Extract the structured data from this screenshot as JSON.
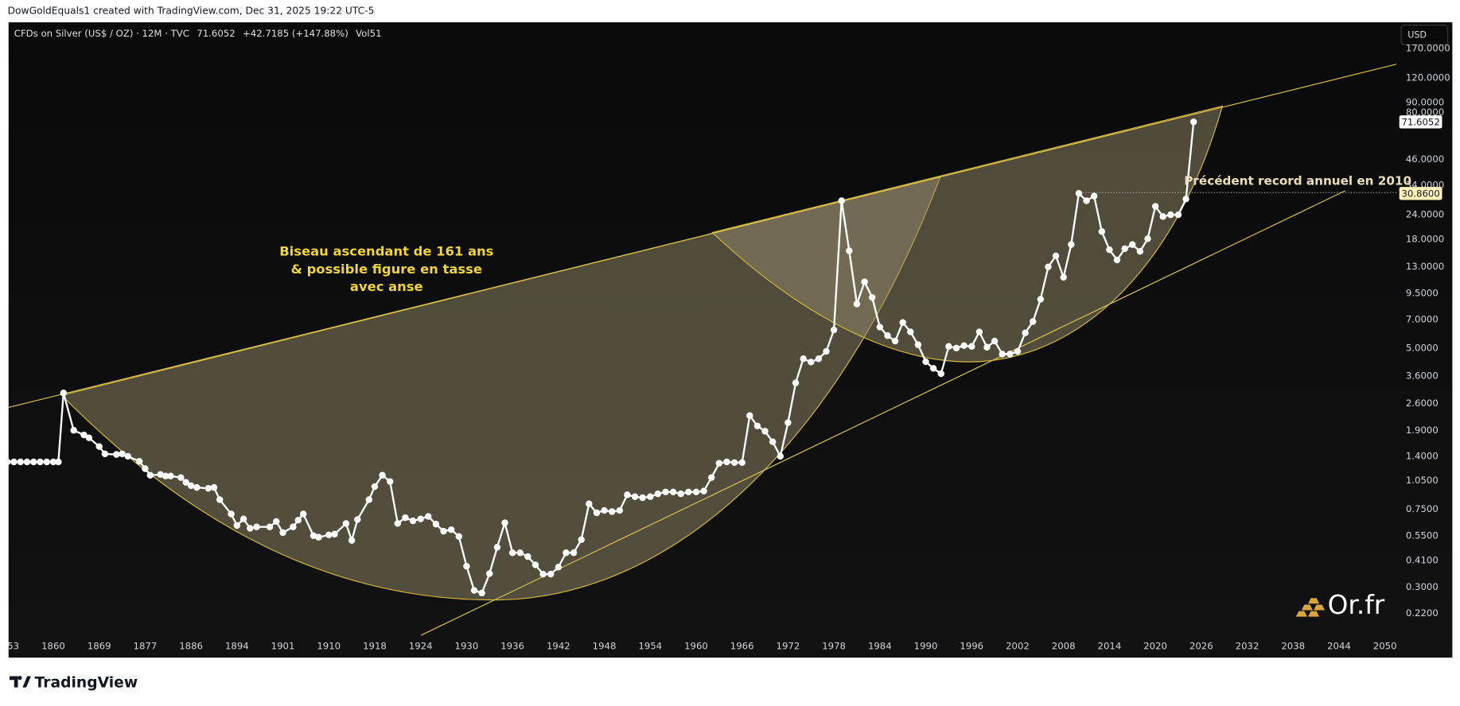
{
  "header": {
    "watermark": "DowGoldEquals1 created with TradingView.com, Dec 31, 2025 19:22 UTC-5",
    "last": "71.6052",
    "change": "+42.7185 (+147.88%)",
    "volume": "Vol51",
    "currency": "USD"
  },
  "chart_data": {
    "type": "line",
    "log_scale": true,
    "grid": false,
    "series": [
      {
        "name": "CFDs on Silver (US$ / OZ) · 12M · TVC",
        "color": "#ffffff",
        "values": [
          1.31,
          1.31,
          1.31,
          1.31,
          1.31,
          1.31,
          1.31,
          1.31,
          1.31,
          2.95,
          1.9,
          1.8,
          1.74,
          1.57,
          1.44,
          1.43,
          1.44,
          1.4,
          1.32,
          1.21,
          1.12,
          1.13,
          1.11,
          1.11,
          1.09,
          1.03,
          0.99,
          0.97,
          0.96,
          0.97,
          0.84,
          0.71,
          0.62,
          0.67,
          0.6,
          0.61,
          0.61,
          0.65,
          0.57,
          0.61,
          0.66,
          0.71,
          0.55,
          0.54,
          0.555,
          0.56,
          0.635,
          0.52,
          0.665,
          0.84,
          0.98,
          1.12,
          1.04,
          0.635,
          0.68,
          0.655,
          0.67,
          0.69,
          0.63,
          0.58,
          0.59,
          0.545,
          0.384,
          0.289,
          0.28,
          0.352,
          0.48,
          0.64,
          0.45,
          0.45,
          0.43,
          0.39,
          0.35,
          0.35,
          0.38,
          0.45,
          0.45,
          0.525,
          0.8,
          0.72,
          0.74,
          0.73,
          0.74,
          0.89,
          0.87,
          0.86,
          0.87,
          0.9,
          0.92,
          0.92,
          0.9,
          0.92,
          0.92,
          0.93,
          1.09,
          1.29,
          1.31,
          1.3,
          1.3,
          2.26,
          2,
          1.88,
          1.66,
          1.4,
          2.08,
          3.32,
          4.41,
          4.24,
          4.41,
          4.81,
          6.19,
          28.3,
          15.7,
          8.4,
          10.9,
          9.07,
          6.4,
          5.79,
          5.43,
          6.76,
          6.05,
          5.2,
          4.26,
          3.94,
          3.7,
          5.1,
          5,
          5.15,
          5.1,
          6.05,
          5.05,
          5.43,
          4.66,
          4.66,
          4.81,
          5.98,
          6.83,
          8.88,
          13,
          14.8,
          11.5,
          16.9,
          30.86,
          28.3,
          29.9,
          19.7,
          15.9,
          14.1,
          16.1,
          16.9,
          15.6,
          18.1,
          26.5,
          23.5,
          24,
          24,
          28.89,
          71.6052
        ]
      }
    ],
    "x": [
      1853,
      1854,
      1855,
      1856,
      1857,
      1858,
      1859,
      1860,
      1861,
      1862,
      1864,
      1866,
      1867,
      1869,
      1870,
      1872,
      1873,
      1874,
      1876,
      1877,
      1878,
      1880,
      1881,
      1882,
      1884,
      1885,
      1886,
      1887,
      1889,
      1890,
      1891,
      1893,
      1894,
      1895,
      1896,
      1897,
      1899,
      1900,
      1901,
      1903,
      1904,
      1905,
      1907,
      1908,
      1910,
      1911,
      1913,
      1914,
      1915,
      1917,
      1918,
      1919,
      1920,
      1921,
      1922,
      1923,
      1924,
      1925,
      1926,
      1927,
      1928,
      1929,
      1930,
      1931,
      1932,
      1933,
      1934,
      1935,
      1936,
      1937,
      1938,
      1939,
      1940,
      1941,
      1942,
      1943,
      1944,
      1945,
      1946,
      1947,
      1948,
      1949,
      1950,
      1951,
      1952,
      1953,
      1954,
      1955,
      1956,
      1957,
      1958,
      1959,
      1960,
      1961,
      1962,
      1963,
      1964,
      1965,
      1966,
      1967,
      1968,
      1969,
      1970,
      1971,
      1972,
      1973,
      1974,
      1975,
      1976,
      1977,
      1978,
      1979,
      1980,
      1981,
      1982,
      1983,
      1984,
      1985,
      1986,
      1987,
      1988,
      1989,
      1990,
      1991,
      1992,
      1993,
      1994,
      1995,
      1996,
      1997,
      1998,
      1999,
      2000,
      2001,
      2002,
      2003,
      2004,
      2005,
      2006,
      2007,
      2008,
      2009,
      2010,
      2011,
      2012,
      2013,
      2014,
      2015,
      2016,
      2017,
      2018,
      2019,
      2020,
      2021,
      2022,
      2023,
      2024,
      2025
    ],
    "xticks": [
      {
        "value": 1853,
        "label": "53"
      },
      1860,
      1869,
      1877,
      1886,
      1894,
      1901,
      1910,
      1918,
      1924,
      1930,
      1936,
      1942,
      1948,
      1954,
      1960,
      1966,
      1972,
      1978,
      1984,
      1990,
      1996,
      2002,
      2008,
      2014,
      2020,
      2026,
      2032,
      2038,
      2044,
      2050
    ],
    "ylim": [
      0.131,
      231
    ],
    "yticks": [
      {
        "value": 170,
        "label": "170.0000"
      },
      {
        "value": 120,
        "label": "120.0000"
      },
      {
        "value": 90,
        "label": "90.0000"
      },
      {
        "value": 80,
        "label": "80.0000"
      },
      {
        "value": 46,
        "label": "46.0000"
      },
      {
        "value": 34,
        "label": "34.0000"
      },
      {
        "value": 24,
        "label": "24.0000"
      },
      {
        "value": 18,
        "label": "18.0000"
      },
      {
        "value": 13,
        "label": "13.0000"
      },
      {
        "value": 9.5,
        "label": "9.5000"
      },
      {
        "value": 7,
        "label": "7.0000"
      },
      {
        "value": 5,
        "label": "5.0000"
      },
      {
        "value": 3.6,
        "label": "3.6000"
      },
      {
        "value": 2.6,
        "label": "2.6000"
      },
      {
        "value": 1.9,
        "label": "1.9000"
      },
      {
        "value": 1.4,
        "label": "1.4000"
      },
      {
        "value": 1.05,
        "label": "1.0500"
      },
      {
        "value": 0.75,
        "label": "0.7500"
      },
      {
        "value": 0.55,
        "label": "0.5500"
      },
      {
        "value": 0.41,
        "label": "0.4100"
      },
      {
        "value": 0.3,
        "label": "0.3000"
      },
      {
        "value": 0.22,
        "label": "0.2200"
      }
    ],
    "price_labels": [
      {
        "value": 71.6052,
        "label": "71.6052"
      },
      {
        "value": 30.86,
        "label": "30.8600"
      }
    ],
    "annotations": [
      "Biseau ascendant de 161 ans",
      "& possible figure en tasse",
      "avec anse",
      "Précédent record annuel en 2010"
    ]
  },
  "logo": "Or.fr",
  "footer": "TradingView"
}
